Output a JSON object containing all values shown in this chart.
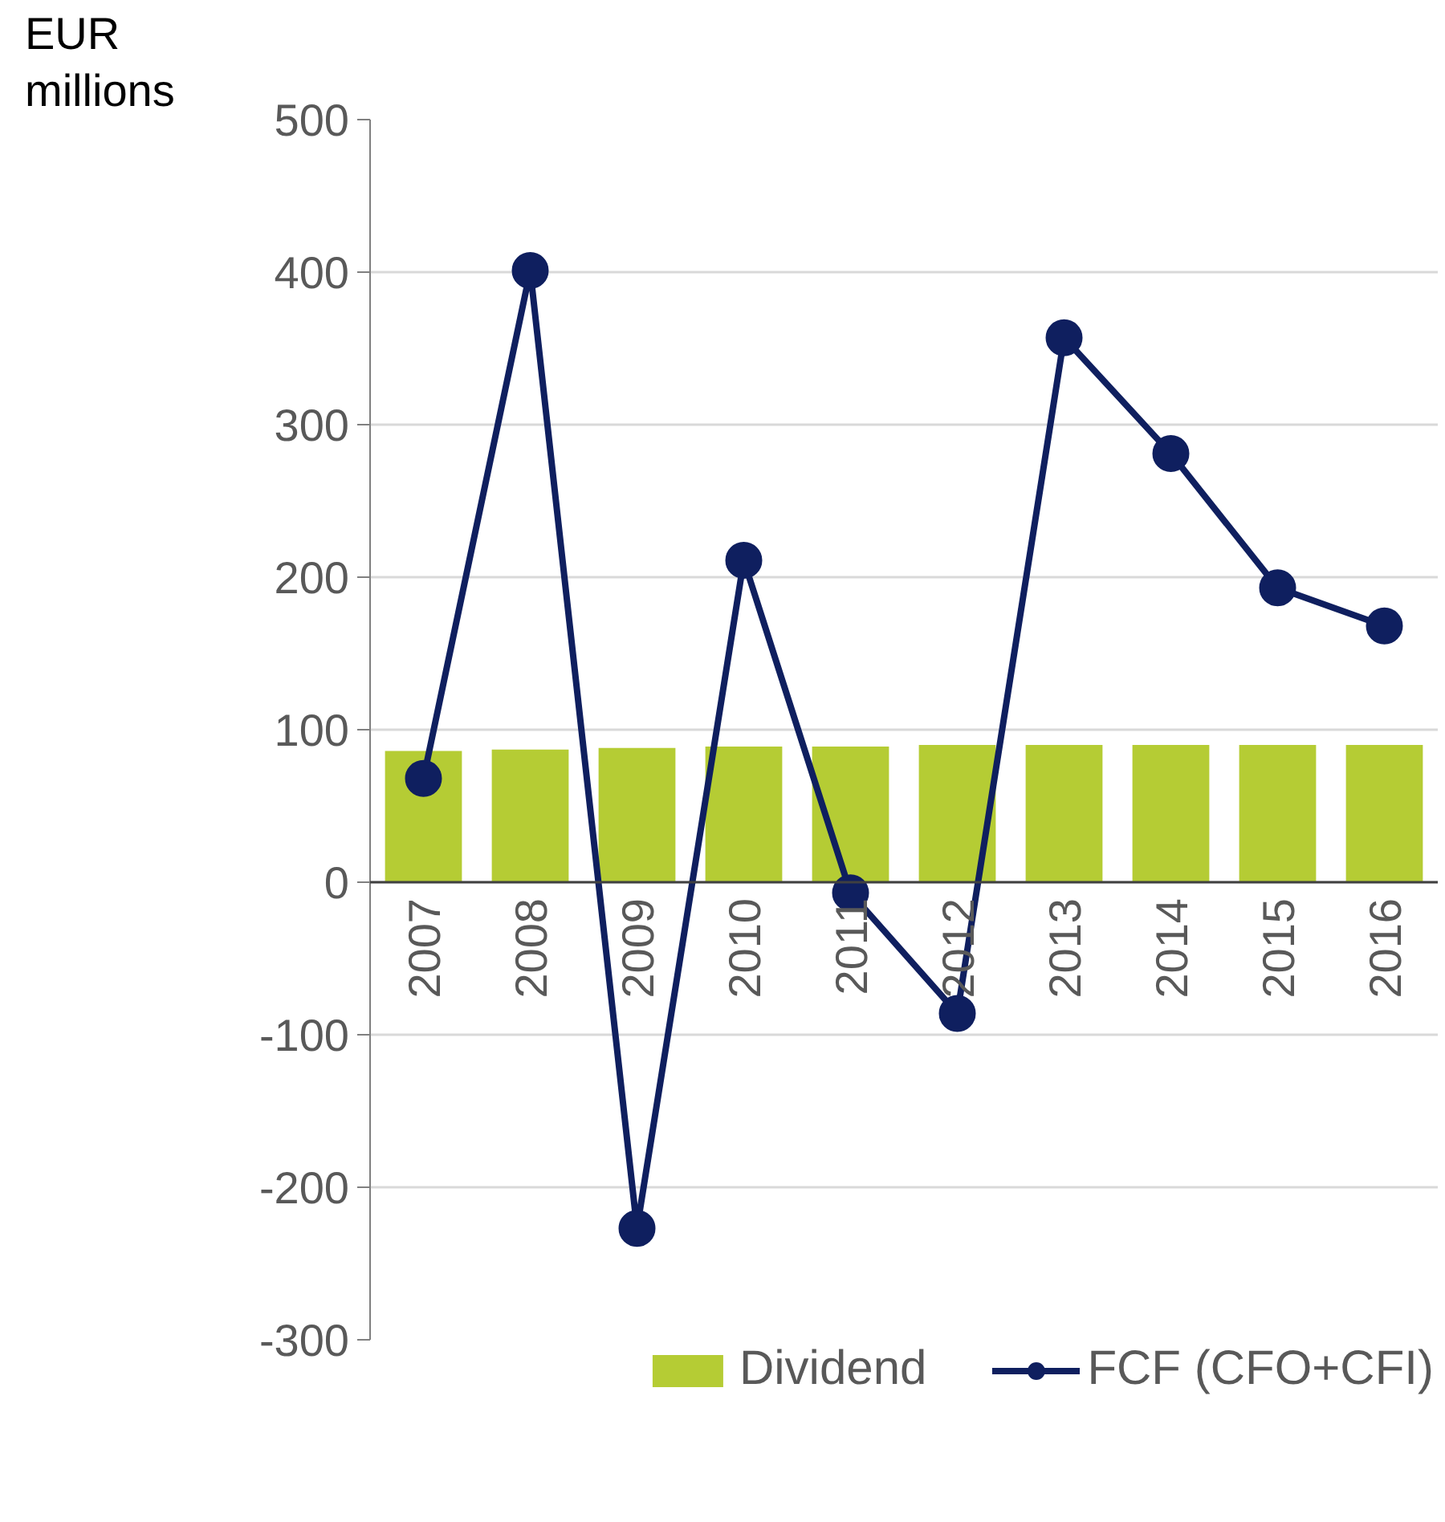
{
  "chart_data": {
    "type": "bar",
    "ylabel": "EUR millions",
    "categories": [
      "2007",
      "2008",
      "2009",
      "2010",
      "2011",
      "2012",
      "2013",
      "2014",
      "2015",
      "2016"
    ],
    "series": [
      {
        "name": "Dividend",
        "color": "#b5cc34",
        "values": [
          86,
          87,
          88,
          89,
          89,
          90,
          90,
          90,
          90,
          90
        ]
      },
      {
        "name": "FCF (CFO+CFI)",
        "type": "line",
        "color": "#0f1f5f",
        "marker": "circle",
        "values": [
          68,
          401,
          -227,
          211,
          -7,
          -86,
          357,
          281,
          193,
          168
        ]
      }
    ],
    "ylim": [
      -300,
      500
    ],
    "yticks": [
      -300,
      -200,
      -100,
      0,
      100,
      200,
      300,
      400,
      500
    ],
    "grid": "y",
    "legend": "bottom"
  }
}
